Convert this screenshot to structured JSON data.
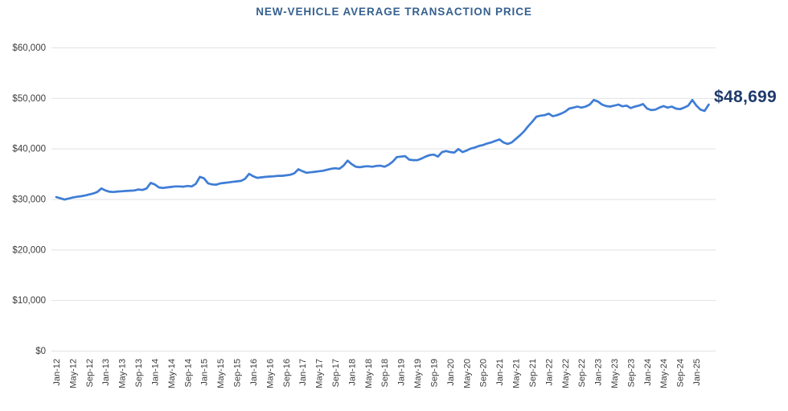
{
  "chart": {
    "title": "NEW-VEHICLE AVERAGE TRANSACTION PRICE",
    "end_label": "$48,699"
  },
  "chart_data": {
    "type": "line",
    "title": "NEW-VEHICLE AVERAGE TRANSACTION PRICE",
    "series_name": "New-vehicle average transaction price (USD)",
    "x_start": "Jan-12",
    "x_end": "Apr-25",
    "x_interval": "monthly",
    "n_points": 160,
    "ticks_every_n_points": 4,
    "x_tick_labels": [
      "Jan-12",
      "May-12",
      "Sep-12",
      "Jan-13",
      "May-13",
      "Sep-13",
      "Jan-14",
      "May-14",
      "Sep-14",
      "Jan-15",
      "May-15",
      "Sep-15",
      "Jan-16",
      "May-16",
      "Sep-16",
      "Jan-17",
      "May-17",
      "Sep-17",
      "Jan-18",
      "May-18",
      "Sep-18",
      "Jan-19",
      "May-19",
      "Sep-19",
      "Jan-20",
      "May-20",
      "Sep-20",
      "Jan-21",
      "May-21",
      "Sep-21",
      "Jan-22",
      "May-22",
      "Sep-22",
      "Jan-23",
      "May-23",
      "Sep-23",
      "Jan-24",
      "May-24",
      "Sep-24",
      "Jan-25"
    ],
    "y_ticks": [
      0,
      10000,
      20000,
      30000,
      40000,
      50000,
      60000
    ],
    "y_tick_labels": [
      "$0",
      "$10,000",
      "$20,000",
      "$30,000",
      "$40,000",
      "$50,000",
      "$60,000"
    ],
    "ylim": [
      0,
      60000
    ],
    "grid": "horizontal",
    "legend": "none",
    "last_value_annotation": "$48,699",
    "line_color": "#3e7dd6",
    "grid_color": "#e2e2e2",
    "axis_text_color": "#3c3c3c",
    "title_color": "#35618f",
    "annotation_color": "#1f3a6d",
    "values": [
      30400,
      30150,
      29900,
      30100,
      30300,
      30450,
      30550,
      30700,
      30900,
      31100,
      31400,
      32100,
      31700,
      31450,
      31400,
      31500,
      31550,
      31600,
      31650,
      31700,
      31900,
      31800,
      32100,
      33200,
      32900,
      32300,
      32200,
      32300,
      32400,
      32500,
      32500,
      32450,
      32600,
      32500,
      33000,
      34400,
      34100,
      33100,
      32900,
      32850,
      33100,
      33200,
      33300,
      33400,
      33500,
      33600,
      34000,
      35000,
      34500,
      34200,
      34300,
      34400,
      34450,
      34500,
      34600,
      34600,
      34700,
      34800,
      35100,
      35900,
      35500,
      35200,
      35300,
      35400,
      35500,
      35600,
      35800,
      36000,
      36100,
      36000,
      36600,
      37600,
      36900,
      36400,
      36300,
      36450,
      36500,
      36400,
      36550,
      36600,
      36400,
      36800,
      37400,
      38300,
      38400,
      38500,
      37800,
      37700,
      37700,
      38000,
      38400,
      38700,
      38800,
      38400,
      39300,
      39500,
      39300,
      39200,
      39900,
      39300,
      39600,
      40000,
      40200,
      40500,
      40700,
      41000,
      41200,
      41500,
      41800,
      41200,
      40900,
      41200,
      41900,
      42600,
      43400,
      44400,
      45300,
      46300,
      46500,
      46600,
      46900,
      46400,
      46600,
      46900,
      47300,
      47900,
      48100,
      48300,
      48100,
      48300,
      48700,
      49600,
      49300,
      48700,
      48400,
      48300,
      48500,
      48700,
      48350,
      48500,
      48000,
      48300,
      48500,
      48800,
      47900,
      47600,
      47700,
      48100,
      48400,
      48100,
      48300,
      47900,
      47800,
      48100,
      48500,
      49600,
      48500,
      47700,
      47450,
      48699
    ]
  }
}
